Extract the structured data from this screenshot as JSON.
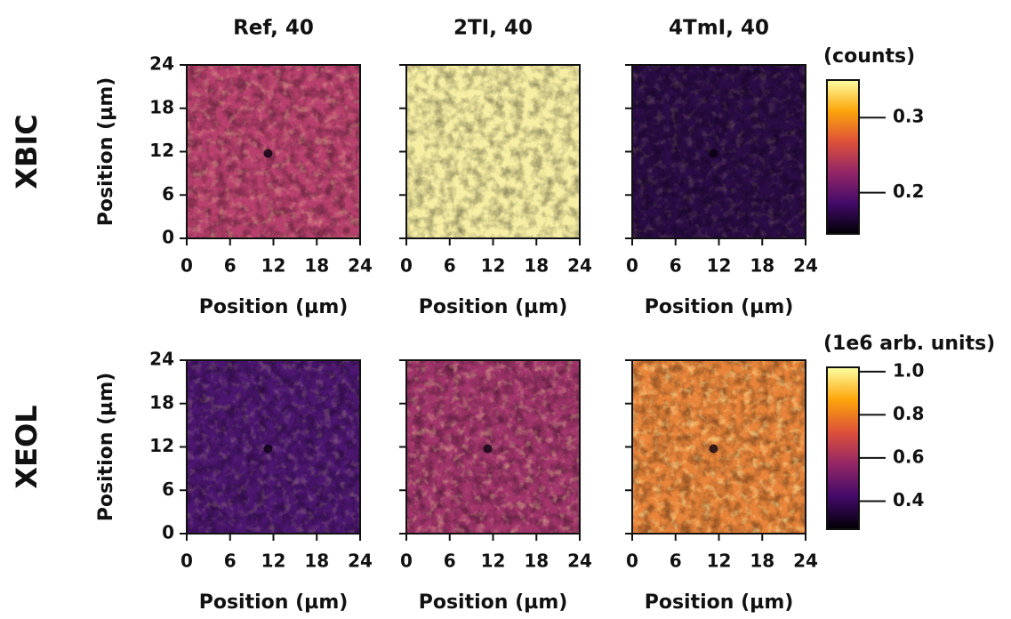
{
  "columns": [
    "Ref, 40",
    "2TI, 40",
    "4TmI, 40"
  ],
  "rows": [
    {
      "label": "XBIC",
      "colorbar": {
        "label": "(counts)",
        "lim": [
          0.145,
          0.35
        ],
        "ticks": [
          0.2,
          0.3
        ]
      }
    },
    {
      "label": "XEOL",
      "colorbar": {
        "label": "(1e6 arb. units)",
        "lim": [
          0.27,
          1.02
        ],
        "ticks": [
          0.4,
          0.6,
          0.8,
          {
            "value": 1.0,
            "label": "1.0"
          }
        ]
      }
    }
  ],
  "axis": {
    "label": "Position (µm)",
    "lim": [
      0,
      24
    ],
    "ticks": [
      0,
      6,
      12,
      18,
      24
    ]
  }
}
